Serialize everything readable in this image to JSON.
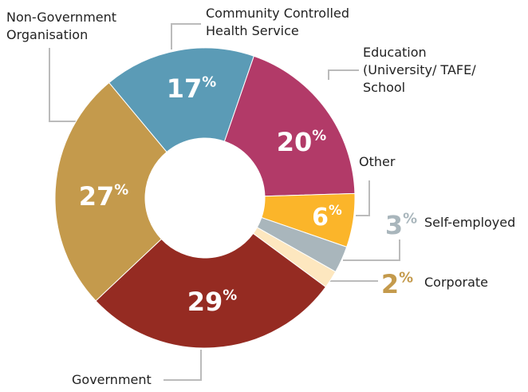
{
  "chart_data": {
    "type": "pie",
    "categories": [
      "Community Controlled Health Service",
      "Education (University/ TAFE/ School",
      "Other",
      "Self-employed",
      "Corporate",
      "Government",
      "Non-Government Organisation"
    ],
    "values": [
      17,
      20,
      6,
      3,
      2,
      29,
      27
    ],
    "value_labels": [
      "17%",
      "20%",
      "6%",
      "3%",
      "2%",
      "29%",
      "27%"
    ],
    "colors": [
      "#5b9bb6",
      "#b23a68",
      "#fbb52a",
      "#a9b6bc",
      "#fde7bf",
      "#952b22",
      "#c49a4c"
    ]
  }
}
